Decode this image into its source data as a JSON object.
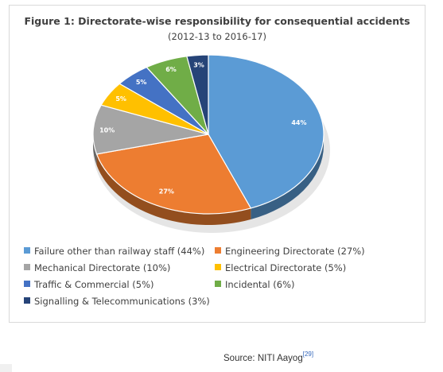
{
  "chart_data": {
    "type": "pie",
    "title": "Figure 1: Directorate-wise responsibility for consequential accidents",
    "subtitle": "(2012-13 to 2016-17)",
    "slices": [
      {
        "label": "Failure other than railway staff (44%)",
        "value": 44,
        "data_label": "44%",
        "color": "#5b9bd5"
      },
      {
        "label": "Engineering Directorate (27%)",
        "value": 27,
        "data_label": "27%",
        "color": "#ed7d31"
      },
      {
        "label": "Mechanical Directorate (10%)",
        "value": 10,
        "data_label": "10%",
        "color": "#a5a5a5"
      },
      {
        "label": "Electrical Directorate (5%)",
        "value": 5,
        "data_label": "5%",
        "color": "#ffc000"
      },
      {
        "label": "Traffic & Commercial (5%)",
        "value": 5,
        "data_label": "5%",
        "color": "#4472c4"
      },
      {
        "label": "Incidental (6%)",
        "value": 6,
        "data_label": "6%",
        "color": "#70ad47"
      },
      {
        "label": "Signalling & Telecommunications (3%)",
        "value": 3,
        "data_label": "3%",
        "color": "#264478"
      }
    ],
    "legend_placement": "bottom"
  },
  "source": {
    "text": "Source: NITI Aayog",
    "ref": "[29]"
  }
}
